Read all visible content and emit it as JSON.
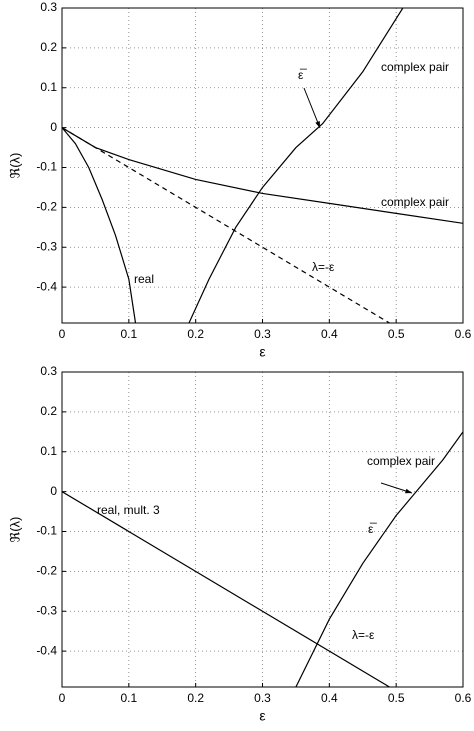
{
  "chart_data": [
    {
      "type": "line",
      "xlabel": "ε",
      "ylabel": "ℜ(λ)",
      "xlim": [
        0,
        0.6
      ],
      "ylim": [
        -0.49,
        0.3
      ],
      "xticks": [
        0,
        0.1,
        0.2,
        0.3,
        0.4,
        0.5,
        0.6
      ],
      "yticks": [
        -0.4,
        -0.3,
        -0.2,
        -0.1,
        0,
        0.1,
        0.2,
        0.3
      ],
      "grid": true,
      "series": [
        {
          "color": "#000000",
          "linestyle": "solid",
          "x": [
            0,
            0.02,
            0.04,
            0.06,
            0.08,
            0.1,
            0.11
          ],
          "values": [
            0,
            -0.04,
            -0.1,
            -0.18,
            -0.27,
            -0.38,
            -0.49
          ]
        },
        {
          "color": "#000000",
          "linestyle": "solid",
          "x": [
            0,
            0.05,
            0.1,
            0.2,
            0.3,
            0.4,
            0.5,
            0.6
          ],
          "values": [
            0,
            -0.05,
            -0.08,
            -0.13,
            -0.165,
            -0.19,
            -0.215,
            -0.24
          ]
        },
        {
          "color": "#000000",
          "linestyle": "dashed",
          "x": [
            0,
            0.49
          ],
          "values": [
            0,
            -0.49
          ]
        },
        {
          "color": "#000000",
          "linestyle": "solid",
          "x": [
            0.19,
            0.22,
            0.26,
            0.3,
            0.35,
            0.39,
            0.45,
            0.51
          ],
          "values": [
            -0.49,
            -0.38,
            -0.25,
            -0.15,
            -0.05,
            0.01,
            0.14,
            0.3
          ]
        }
      ],
      "annotations": [
        "real",
        "complex pair",
        "complex pair",
        "λ=-ε",
        "ε̅"
      ]
    },
    {
      "type": "line",
      "xlabel": "ε",
      "ylabel": "ℜ(λ)",
      "xlim": [
        0,
        0.6
      ],
      "ylim": [
        -0.49,
        0.3
      ],
      "xticks": [
        0,
        0.1,
        0.2,
        0.3,
        0.4,
        0.5,
        0.6
      ],
      "yticks": [
        -0.4,
        -0.3,
        -0.2,
        -0.1,
        0,
        0.1,
        0.2,
        0.3
      ],
      "grid": true,
      "series": [
        {
          "color": "#000000",
          "linestyle": "solid",
          "x": [
            0,
            0.49
          ],
          "values": [
            0,
            -0.49
          ]
        },
        {
          "color": "#000000",
          "linestyle": "solid",
          "x": [
            0.35,
            0.4,
            0.45,
            0.5,
            0.53,
            0.57,
            0.6
          ],
          "values": [
            -0.49,
            -0.32,
            -0.18,
            -0.06,
            0,
            0.08,
            0.15
          ]
        }
      ],
      "annotations": [
        "complex pair",
        "ε̅",
        "real, mult. 3",
        "λ=-ε"
      ]
    }
  ]
}
